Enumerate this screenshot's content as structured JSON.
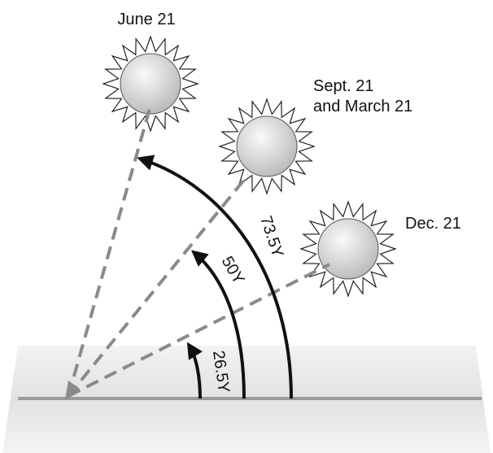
{
  "labels": {
    "june": "June 21",
    "sept_line1": "Sept. 21",
    "sept_line2": "and March 21",
    "dec": "Dec. 21"
  },
  "angles": {
    "june": "73.5Υ",
    "equinox": "50Υ",
    "dec": "26.5Υ"
  }
}
